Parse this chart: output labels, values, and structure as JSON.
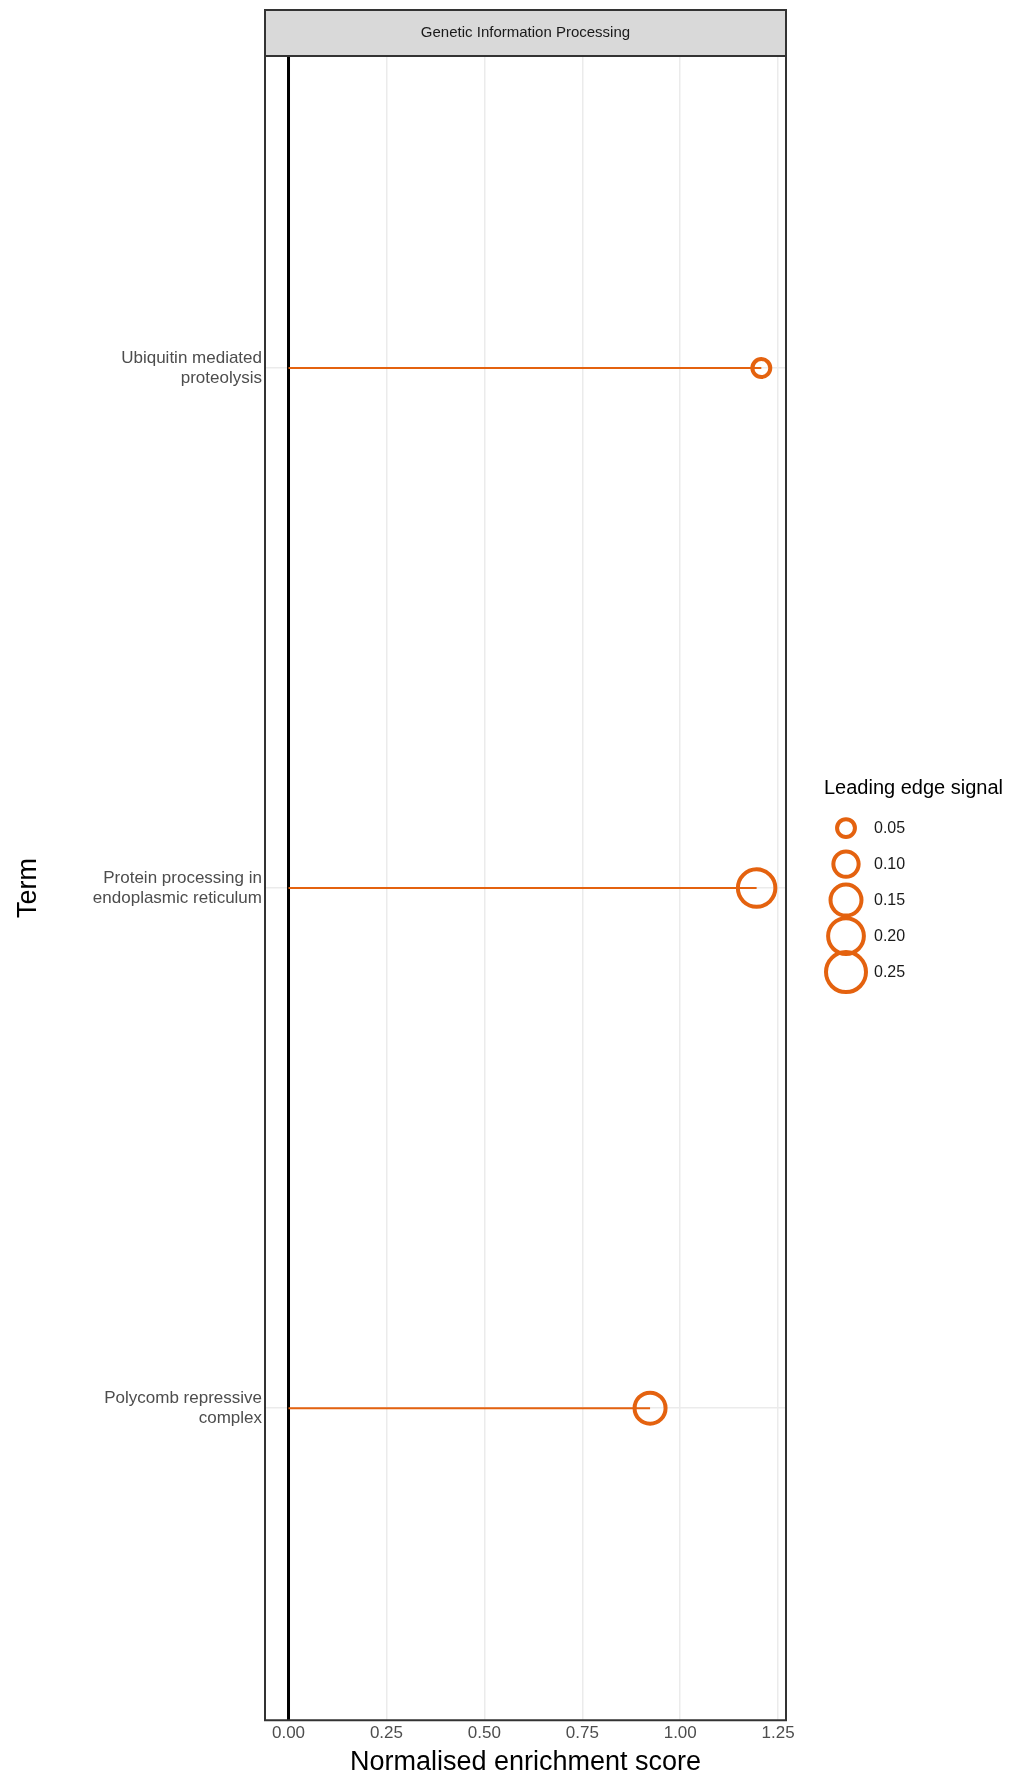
{
  "chart_data": {
    "type": "lollipop",
    "orientation": "horizontal",
    "title": "Genetic Information Processing",
    "xlabel": "Normalised enrichment score",
    "ylabel": "Term",
    "legend_title": "Leading edge signal",
    "categories": [
      "Ubiquitin mediated proteolysis",
      "Protein processing in endoplasmic reticulum",
      "Polycomb repressive complex"
    ],
    "values": [
      1.207,
      1.195,
      0.923
    ],
    "sizes": [
      0.05,
      0.22,
      0.15
    ],
    "size_legend": [
      0.05,
      {
        "value": 0.1,
        "label": "0.10"
      },
      0.15,
      {
        "value": 0.2,
        "label": "0.20"
      },
      0.25
    ],
    "color": "#e4620f",
    "xlim": [
      -0.06,
      1.27
    ],
    "xticks": [
      {
        "value": 0,
        "label": "0.00"
      },
      {
        "value": 0.25,
        "label": "0.25"
      },
      {
        "value": 0.5,
        "label": "0.50"
      },
      {
        "value": 0.75,
        "label": "0.75"
      },
      {
        "value": 1,
        "label": "1.00"
      },
      {
        "value": 1.25,
        "label": "1.25"
      }
    ],
    "ref_lines": [
      {
        "axis": "x",
        "value": 0,
        "color": "#000000"
      }
    ],
    "grid": true,
    "marker": "circle"
  }
}
